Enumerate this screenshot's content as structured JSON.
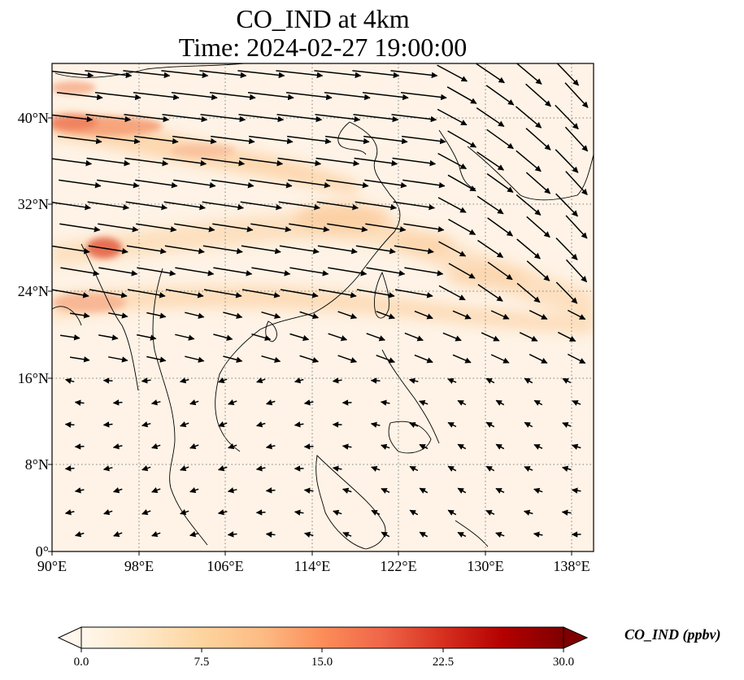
{
  "title": {
    "line1": "CO_IND at 4km",
    "line2": "Time: 2024-02-27 19:00:00"
  },
  "map": {
    "projection": "PlateCarree",
    "lon_range": [
      90,
      140
    ],
    "lat_range": [
      0,
      45
    ],
    "gridlines": "dotted grey",
    "lat_ticks": [
      "40°N",
      "32°N",
      "24°N",
      "16°N",
      "8°N",
      "0°"
    ],
    "lon_ticks": [
      "90°E",
      "98°E",
      "106°E",
      "114°E",
      "122°E",
      "130°E",
      "138°E"
    ],
    "field": "CO_IND concentration, shaded",
    "vectors": "black wind arrows"
  },
  "colorbar": {
    "label": "CO_IND (ppbv)",
    "colormap": "OrRd",
    "colors": [
      "#fff7ec",
      "#fee8c8",
      "#fdd49e",
      "#fdbb84",
      "#fc8d59",
      "#ef6548",
      "#d7301f",
      "#b30000",
      "#7f0000"
    ],
    "ticks": [
      "0.0",
      "7.5",
      "15.0",
      "22.5",
      "30.0"
    ],
    "range": [
      0,
      30
    ],
    "extend": "both"
  }
}
